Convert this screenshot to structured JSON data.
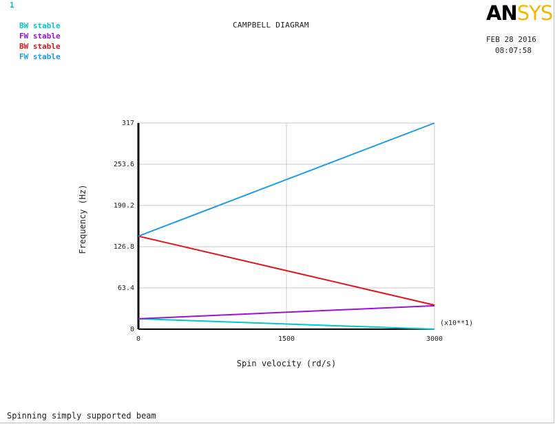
{
  "window_number": "1",
  "header": {
    "title": "CAMPBELL DIAGRAM",
    "logo_main": "AN",
    "logo_accent": "SYS",
    "date": "FEB 28 2016",
    "time": "08:07:58"
  },
  "legend": [
    {
      "label": "BW stable",
      "color": "#00c8c8"
    },
    {
      "label": "FW stable",
      "color": "#9a10e0"
    },
    {
      "label": "BW stable",
      "color": "#e0141e"
    },
    {
      "label": "FW stable",
      "color": "#1e9ae6"
    }
  ],
  "caption": "Spinning simply supported beam",
  "chart_data": {
    "type": "line",
    "title": "CAMPBELL DIAGRAM",
    "xlabel": "Spin velocity (rd/s)",
    "ylabel": "Frequency (Hz)",
    "x_multiplier_label": "(x10**1)",
    "xlim": [
      0,
      3000
    ],
    "ylim": [
      0,
      317
    ],
    "x_ticks": [
      0,
      1500,
      3000
    ],
    "x_tick_labels": [
      "0",
      "1500",
      "3000"
    ],
    "y_ticks": [
      0,
      63.4,
      126.8,
      190.2,
      253.6,
      317
    ],
    "y_tick_labels": [
      "0",
      "63.4",
      "126.8",
      "190.2",
      "253.6",
      "317"
    ],
    "grid": true,
    "series": [
      {
        "name": "BW stable",
        "color": "#00c8c8",
        "x": [
          0,
          3000
        ],
        "y": [
          16,
          0
        ]
      },
      {
        "name": "FW stable",
        "color": "#9a10e0",
        "x": [
          0,
          3000
        ],
        "y": [
          16,
          36
        ]
      },
      {
        "name": "BW stable",
        "color": "#e0141e",
        "x": [
          0,
          3000
        ],
        "y": [
          143,
          37
        ]
      },
      {
        "name": "FW stable",
        "color": "#1e9ae6",
        "x": [
          0,
          3000
        ],
        "y": [
          143,
          317
        ]
      }
    ]
  }
}
